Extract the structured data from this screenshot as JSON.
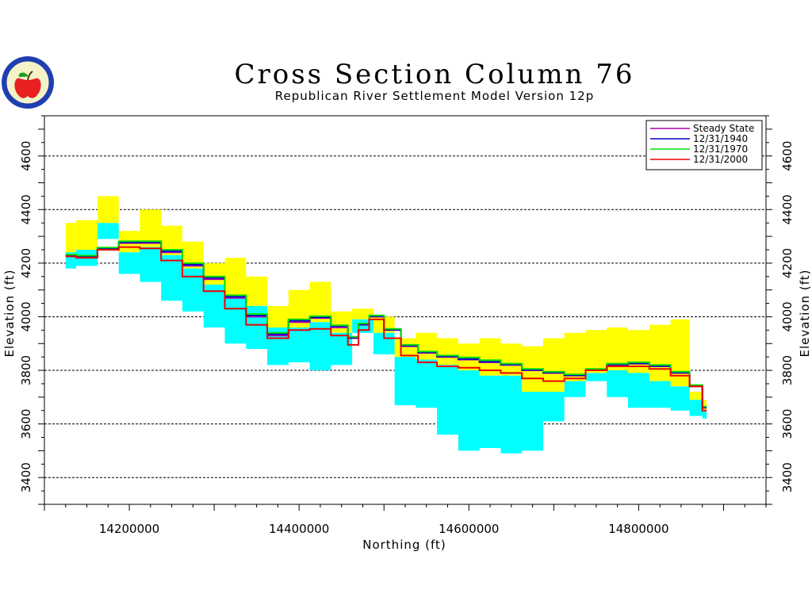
{
  "chart_data": {
    "type": "line",
    "title": "Cross Section Column 76",
    "subtitle": "Republican River Settlement Model Version 12p",
    "xlabel": "Northing (ft)",
    "ylabel": "Elevation (ft)",
    "xlim": [
      14100000,
      14950000
    ],
    "ylim": [
      3300,
      4750
    ],
    "x_ticks": [
      14200000,
      14400000,
      14600000,
      14800000
    ],
    "x_tick_labels": [
      "14200000",
      "14400000",
      "14600000",
      "14800000"
    ],
    "y_ticks": [
      3400,
      3600,
      3800,
      4000,
      4200,
      4400,
      4600
    ],
    "y_tick_labels": [
      "3400",
      "3600",
      "3800",
      "4000",
      "4200",
      "4400",
      "4600"
    ],
    "grid": "horizontal-dashed",
    "legend_position": "top-right",
    "colors": {
      "steady_state": "#b000b0",
      "y1940": "#0000cc",
      "y1970": "#00dd00",
      "y2000": "#ee0000",
      "upper_layer_fill": "#ffff00",
      "lower_layer_fill": "#00ffff"
    },
    "layers": {
      "x": [
        14125000,
        14150000,
        14175000,
        14200000,
        14225000,
        14250000,
        14275000,
        14300000,
        14325000,
        14350000,
        14375000,
        14400000,
        14425000,
        14450000,
        14475000,
        14500000,
        14525000,
        14550000,
        14575000,
        14600000,
        14625000,
        14650000,
        14675000,
        14700000,
        14725000,
        14750000,
        14775000,
        14800000,
        14825000,
        14850000,
        14870000,
        14880000
      ],
      "land_surface": [
        4350,
        4360,
        4450,
        4320,
        4400,
        4340,
        4280,
        4200,
        4220,
        4150,
        4040,
        4100,
        4130,
        4020,
        4030,
        4000,
        3920,
        3940,
        3920,
        3900,
        3920,
        3900,
        3890,
        3920,
        3940,
        3950,
        3960,
        3950,
        3970,
        3990,
        3720,
        3690
      ],
      "layer_contact": [
        4240,
        4250,
        4350,
        4240,
        4260,
        4230,
        4180,
        4120,
        4080,
        4040,
        3960,
        3960,
        3980,
        3940,
        3990,
        3940,
        3850,
        3840,
        3820,
        3800,
        3780,
        3780,
        3720,
        3720,
        3760,
        3790,
        3800,
        3790,
        3760,
        3740,
        3690,
        3650
      ],
      "aquifer_base": [
        4180,
        4190,
        4290,
        4160,
        4130,
        4060,
        4020,
        3960,
        3900,
        3880,
        3820,
        3830,
        3800,
        3820,
        3940,
        3860,
        3670,
        3660,
        3560,
        3500,
        3510,
        3490,
        3500,
        3610,
        3700,
        3760,
        3700,
        3660,
        3660,
        3650,
        3630,
        3620
      ]
    },
    "series": [
      {
        "name": "Steady State",
        "x": [
          14125000,
          14150000,
          14175000,
          14200000,
          14225000,
          14250000,
          14275000,
          14300000,
          14325000,
          14350000,
          14375000,
          14400000,
          14425000,
          14450000,
          14465000,
          14475000,
          14490000,
          14510000,
          14530000,
          14550000,
          14575000,
          14600000,
          14625000,
          14650000,
          14675000,
          14700000,
          14725000,
          14750000,
          14775000,
          14800000,
          14825000,
          14850000,
          14870000,
          14880000
        ],
        "y": [
          4230,
          4225,
          4255,
          4275,
          4275,
          4240,
          4190,
          4140,
          4070,
          4000,
          3930,
          3980,
          3995,
          3960,
          3920,
          3970,
          4000,
          3950,
          3890,
          3865,
          3850,
          3840,
          3830,
          3820,
          3800,
          3790,
          3780,
          3800,
          3820,
          3825,
          3815,
          3790,
          3740,
          3660
        ]
      },
      {
        "name": "12/31/1940",
        "x": [
          14125000,
          14150000,
          14175000,
          14200000,
          14225000,
          14250000,
          14275000,
          14300000,
          14325000,
          14350000,
          14375000,
          14400000,
          14425000,
          14450000,
          14465000,
          14475000,
          14490000,
          14510000,
          14530000,
          14550000,
          14575000,
          14600000,
          14625000,
          14650000,
          14675000,
          14700000,
          14725000,
          14750000,
          14775000,
          14800000,
          14825000,
          14850000,
          14870000,
          14880000
        ],
        "y": [
          4230,
          4225,
          4255,
          4278,
          4278,
          4245,
          4195,
          4145,
          4075,
          4005,
          3935,
          3985,
          3998,
          3965,
          3922,
          3972,
          4002,
          3952,
          3892,
          3868,
          3852,
          3842,
          3832,
          3822,
          3802,
          3792,
          3782,
          3802,
          3822,
          3826,
          3816,
          3792,
          3742,
          3662
        ]
      },
      {
        "name": "12/31/1970",
        "x": [
          14125000,
          14150000,
          14175000,
          14200000,
          14225000,
          14250000,
          14275000,
          14300000,
          14325000,
          14350000,
          14375000,
          14400000,
          14425000,
          14450000,
          14465000,
          14475000,
          14490000,
          14510000,
          14530000,
          14550000,
          14575000,
          14600000,
          14625000,
          14650000,
          14675000,
          14700000,
          14725000,
          14750000,
          14775000,
          14800000,
          14825000,
          14850000,
          14870000,
          14880000
        ],
        "y": [
          4232,
          4228,
          4258,
          4282,
          4282,
          4250,
          4200,
          4150,
          4080,
          4010,
          3940,
          3990,
          4002,
          3968,
          3925,
          3975,
          4005,
          3955,
          3895,
          3870,
          3855,
          3848,
          3838,
          3825,
          3805,
          3795,
          3785,
          3805,
          3825,
          3830,
          3820,
          3795,
          3745,
          3665
        ]
      },
      {
        "name": "12/31/2000",
        "x": [
          14125000,
          14150000,
          14175000,
          14200000,
          14225000,
          14250000,
          14275000,
          14300000,
          14325000,
          14350000,
          14375000,
          14400000,
          14425000,
          14450000,
          14465000,
          14475000,
          14490000,
          14510000,
          14530000,
          14550000,
          14575000,
          14600000,
          14625000,
          14650000,
          14675000,
          14700000,
          14725000,
          14750000,
          14775000,
          14800000,
          14825000,
          14850000,
          14870000,
          14880000
        ],
        "y": [
          4225,
          4220,
          4250,
          4260,
          4255,
          4210,
          4150,
          4095,
          4030,
          3970,
          3920,
          3950,
          3955,
          3930,
          3895,
          3950,
          3990,
          3920,
          3855,
          3830,
          3815,
          3810,
          3800,
          3790,
          3770,
          3760,
          3770,
          3800,
          3815,
          3815,
          3805,
          3780,
          3740,
          3650
        ]
      }
    ]
  }
}
